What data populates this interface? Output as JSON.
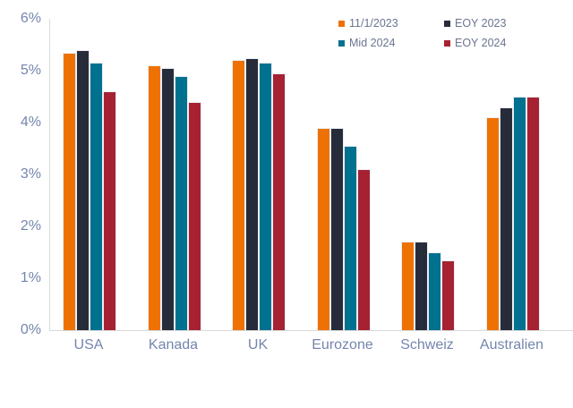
{
  "chart_data": {
    "type": "bar",
    "title": "",
    "unit": "%",
    "categories": [
      "USA",
      "Kanada",
      "UK",
      "Eurozone",
      "Schweiz",
      "Australien"
    ],
    "series": [
      {
        "name": "11/1/2023",
        "color": "#ee7203",
        "values": [
          5.35,
          5.1,
          5.2,
          3.9,
          1.7,
          4.1
        ]
      },
      {
        "name": "EOY 2023",
        "color": "#272c3a",
        "values": [
          5.4,
          5.05,
          5.25,
          3.9,
          1.7,
          4.3
        ]
      },
      {
        "name": "Mid 2024",
        "color": "#00718f",
        "values": [
          5.15,
          4.9,
          5.15,
          3.55,
          1.5,
          4.5
        ]
      },
      {
        "name": "EOY 2024",
        "color": "#a62233",
        "values": [
          4.6,
          4.4,
          4.95,
          3.1,
          1.35,
          4.5
        ]
      }
    ],
    "legend_order": [
      "11/1/2023",
      "EOY 2023",
      "Mid 2024",
      "EOY 2024"
    ],
    "legend_position": "top-right",
    "y_ticks": [
      "0%",
      "1%",
      "2%",
      "3%",
      "4%",
      "5%",
      "6%"
    ],
    "ylim": [
      0,
      6
    ],
    "xlabel": "",
    "ylabel": "",
    "grid": "off",
    "colors": {
      "axis_line": "#d9d9d9",
      "axis_text": "#7585ad",
      "legend_text": "#6a7590",
      "background": "#ffffff"
    }
  }
}
